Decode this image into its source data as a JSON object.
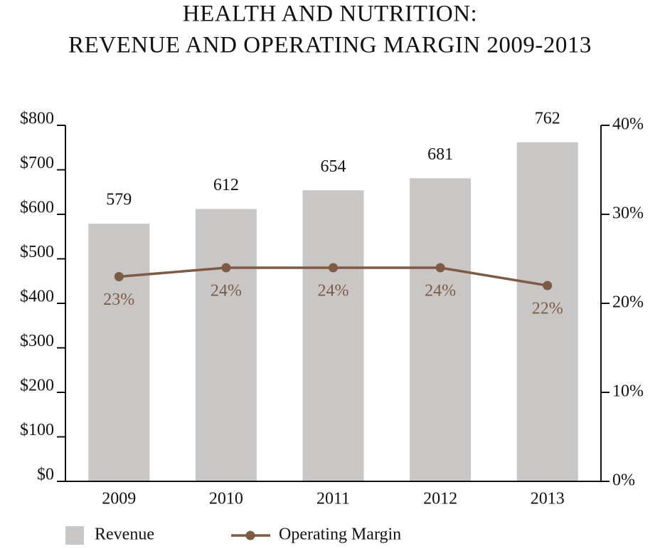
{
  "chart_data": {
    "type": "bar",
    "title": [
      "HEALTH AND NUTRITION:",
      "REVENUE AND OPERATING MARGIN 2009-2013"
    ],
    "categories": [
      "2009",
      "2010",
      "2011",
      "2012",
      "2013"
    ],
    "series": [
      {
        "name": "Revenue",
        "type": "bar",
        "color": "#c9c7c5",
        "values": [
          579,
          612,
          654,
          681,
          762
        ]
      },
      {
        "name": "Operating Margin",
        "type": "line",
        "axis": "y2",
        "color": "#7d5b45",
        "values": [
          23,
          24,
          24,
          24,
          22
        ],
        "value_labels": [
          "23%",
          "24%",
          "24%",
          "24%",
          "22%"
        ]
      }
    ],
    "ylim": [
      0,
      800
    ],
    "yticks": [
      {
        "value": 0,
        "label": "$0"
      },
      {
        "value": 100,
        "label": "$100"
      },
      {
        "value": 200,
        "label": "$200"
      },
      {
        "value": 300,
        "label": "$300"
      },
      {
        "value": 400,
        "label": "$400"
      },
      {
        "value": 500,
        "label": "$500"
      },
      {
        "value": 600,
        "label": "$600"
      },
      {
        "value": 700,
        "label": "$700"
      },
      {
        "value": 800,
        "label": "$800"
      }
    ],
    "y2lim": [
      0,
      40
    ],
    "y2ticks": [
      {
        "value": 0,
        "label": "0%"
      },
      {
        "value": 10,
        "label": "10%"
      },
      {
        "value": 20,
        "label": "20%"
      },
      {
        "value": 30,
        "label": "30%"
      },
      {
        "value": 40,
        "label": "40%"
      }
    ],
    "grid": false,
    "legend": "bottom"
  }
}
